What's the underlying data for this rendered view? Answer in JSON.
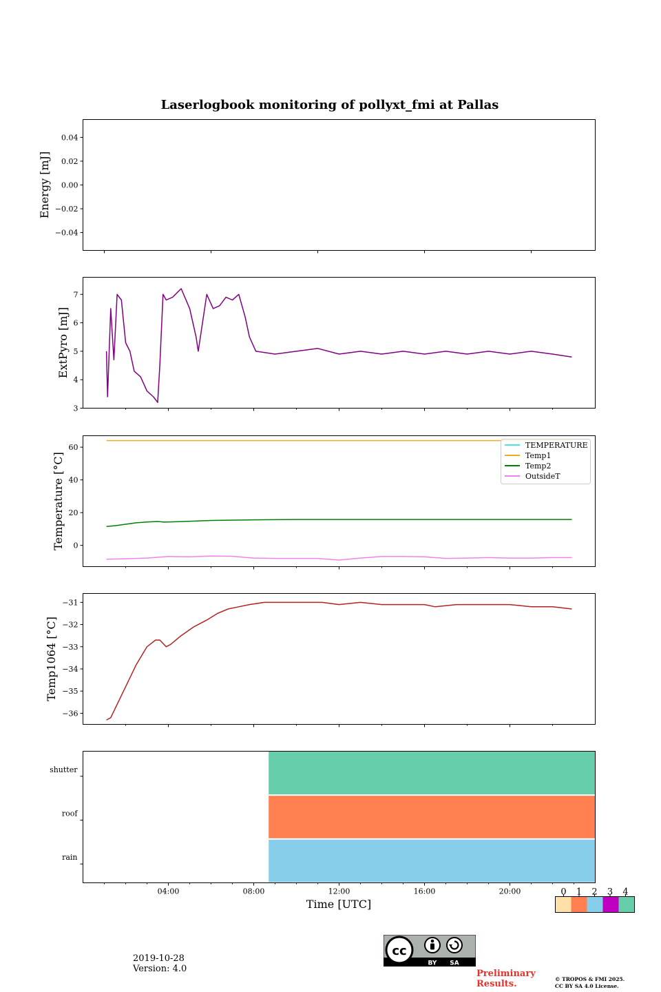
{
  "figure": {
    "title": "Laserlogbook monitoring of pollyxt_fmi at Pallas",
    "x_axis": {
      "label": "Time [UTC]",
      "range_hours": [
        0,
        24
      ],
      "tick_labels": [
        "04:00",
        "08:00",
        "12:00",
        "16:00",
        "20:00"
      ],
      "tick_hours": [
        4,
        8,
        12,
        16,
        20
      ]
    }
  },
  "chart_data": [
    {
      "type": "line",
      "name": "energy",
      "ylabel": "Energy [mJ]",
      "ylim": [
        -0.055,
        0.055
      ],
      "ytick_values": [
        0.04,
        0.02,
        0.0,
        -0.02,
        -0.04
      ],
      "ytick_labels": [
        "0.04",
        "0.02",
        "0.00",
        "−0.02",
        "−0.04"
      ],
      "series": []
    },
    {
      "type": "line",
      "name": "extpyro",
      "ylabel": "ExtPyro [mJ]",
      "ylim": [
        3,
        7.6
      ],
      "ytick_values": [
        3,
        4,
        5,
        6,
        7
      ],
      "ytick_labels": [
        "3",
        "4",
        "5",
        "6",
        "7"
      ],
      "series": [
        {
          "name": "ExtPyro",
          "color": "#800080",
          "x": [
            1.1,
            1.15,
            1.3,
            1.45,
            1.6,
            1.8,
            2.0,
            2.2,
            2.4,
            2.7,
            3.0,
            3.3,
            3.5,
            3.6,
            3.75,
            3.9,
            4.2,
            4.6,
            5.0,
            5.3,
            5.4,
            5.6,
            5.8,
            6.1,
            6.4,
            6.7,
            7.0,
            7.3,
            7.6,
            7.8,
            8.1,
            9.0,
            10.0,
            11.0,
            12.0,
            13.0,
            14.0,
            15.0,
            16.0,
            17.0,
            18.0,
            19.0,
            20.0,
            21.0,
            22.0,
            22.9
          ],
          "y": [
            5.0,
            3.4,
            6.5,
            4.7,
            7.0,
            6.8,
            5.3,
            5.0,
            4.3,
            4.1,
            3.6,
            3.4,
            3.2,
            4.5,
            7.0,
            6.8,
            6.9,
            7.2,
            6.5,
            5.5,
            5.0,
            6.0,
            7.0,
            6.5,
            6.6,
            6.9,
            6.8,
            7.0,
            6.2,
            5.5,
            5.0,
            4.9,
            5.0,
            5.1,
            4.9,
            5.0,
            4.9,
            5.0,
            4.9,
            5.0,
            4.9,
            5.0,
            4.9,
            5.0,
            4.9,
            4.8
          ]
        }
      ]
    },
    {
      "type": "line",
      "name": "temperature",
      "ylabel": "Temperature [°C]",
      "ylim": [
        -13,
        67
      ],
      "ytick_values": [
        0,
        20,
        40,
        60
      ],
      "ytick_labels": [
        "0",
        "20",
        "40",
        "60"
      ],
      "legend_location": "top-right",
      "series": [
        {
          "name": "TEMPERATURE",
          "color": "#4de0e8",
          "x": [],
          "y": []
        },
        {
          "name": "Temp1",
          "color": "#f5a623",
          "x": [
            1.1,
            22.9
          ],
          "y": [
            64,
            64
          ]
        },
        {
          "name": "Temp2",
          "color": "#008000",
          "x": [
            1.1,
            1.5,
            2.0,
            2.5,
            3.0,
            3.5,
            3.8,
            4.5,
            6.0,
            8.0,
            10.0,
            15.0,
            22.9
          ],
          "y": [
            11.5,
            12.0,
            12.9,
            13.8,
            14.3,
            14.6,
            14.2,
            14.5,
            15.2,
            15.6,
            15.8,
            15.8,
            15.8
          ]
        },
        {
          "name": "OutsideT",
          "color": "#ee82ee",
          "x": [
            1.1,
            2.0,
            3.0,
            4.0,
            5.0,
            6.0,
            7.0,
            8.0,
            9.0,
            10.0,
            11.0,
            12.0,
            13.0,
            14.0,
            15.0,
            16.0,
            17.0,
            18.0,
            19.0,
            20.0,
            21.0,
            22.0,
            22.9
          ],
          "y": [
            -8.5,
            -8.2,
            -7.8,
            -6.8,
            -7.0,
            -6.5,
            -6.7,
            -7.8,
            -8.0,
            -8.0,
            -8.0,
            -9.0,
            -7.8,
            -6.8,
            -6.8,
            -7.0,
            -8.0,
            -7.8,
            -7.5,
            -7.8,
            -7.8,
            -7.5,
            -7.5
          ]
        }
      ]
    },
    {
      "type": "line",
      "name": "temp1064",
      "ylabel": "Temp1064 [°C]",
      "ylim": [
        -36.5,
        -30.6
      ],
      "ytick_values": [
        -31,
        -32,
        -33,
        -34,
        -35,
        -36
      ],
      "ytick_labels": [
        "−31",
        "−32",
        "−33",
        "−34",
        "−35",
        "−36"
      ],
      "series": [
        {
          "name": "Temp1064",
          "color": "#b22222",
          "x": [
            1.1,
            1.3,
            1.6,
            2.0,
            2.5,
            3.0,
            3.4,
            3.6,
            3.9,
            4.1,
            4.6,
            5.2,
            5.8,
            6.3,
            6.8,
            7.3,
            7.8,
            8.5,
            9.0,
            10.0,
            11.0,
            11.2,
            12.0,
            13.0,
            14.0,
            16.0,
            16.5,
            17.5,
            18.5,
            19.0,
            20.0,
            21.0,
            22.0,
            22.9
          ],
          "y": [
            -36.3,
            -36.2,
            -35.6,
            -34.8,
            -33.8,
            -33.0,
            -32.7,
            -32.7,
            -33.0,
            -32.9,
            -32.5,
            -32.1,
            -31.8,
            -31.5,
            -31.3,
            -31.2,
            -31.1,
            -31.0,
            -31.0,
            -31.0,
            -31.0,
            -31.0,
            -31.1,
            -31.0,
            -31.1,
            -31.1,
            -31.2,
            -31.1,
            -31.1,
            -31.1,
            -31.1,
            -31.2,
            -31.2,
            -31.3
          ]
        }
      ]
    },
    {
      "type": "heatmap",
      "name": "status",
      "ytick_labels": [
        "shutter",
        "roof",
        "rain"
      ],
      "rows": [
        {
          "name": "shutter",
          "start_hour": 8.7,
          "end_hour": 24,
          "value": 4
        },
        {
          "name": "roof",
          "start_hour": 8.7,
          "end_hour": 24,
          "value": 1
        },
        {
          "name": "rain",
          "start_hour": 8.7,
          "end_hour": 24,
          "value": 2
        }
      ],
      "colorbar": {
        "tick_labels": [
          "0",
          "1",
          "2",
          "3",
          "4"
        ],
        "colors": [
          "#ffe0a8",
          "#ff7f50",
          "#87ceeb",
          "#c000c0",
          "#66cdaa"
        ]
      }
    }
  ],
  "footer": {
    "date": "2019-10-28",
    "version": "Version: 4.0",
    "license_badge": {
      "by": "BY",
      "sa": "SA",
      "cc": "cc"
    },
    "preliminary_line1": "Preliminary",
    "preliminary_line2": "Results.",
    "copyright_line1": "© TROPOS & FMI 2025.",
    "copyright_line2": "CC BY SA 4.0 License."
  }
}
